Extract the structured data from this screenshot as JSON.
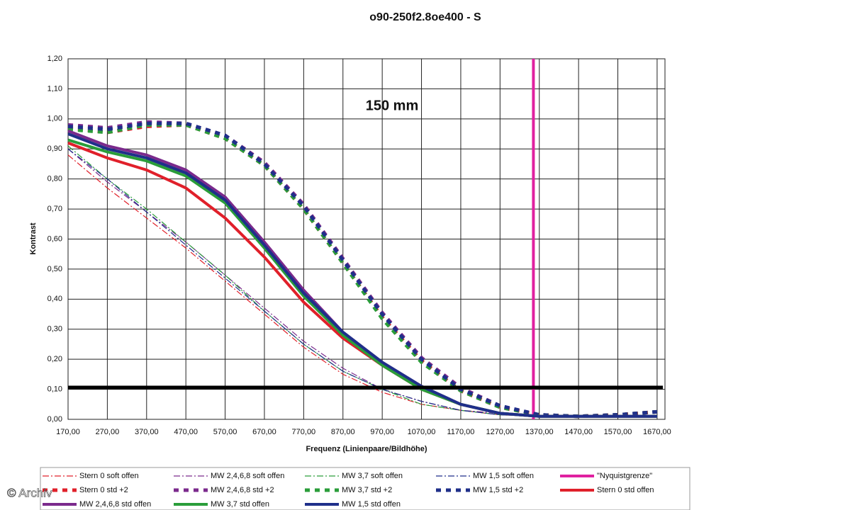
{
  "chart_data": {
    "type": "line",
    "title": "o90-250f2.8oe400 - S",
    "annotation": "150 mm",
    "x_label": "Frequenz (Linienpaare/Bildhöhe)",
    "y_label": "Kontrast",
    "watermark": "© Archiv",
    "x": [
      170,
      270,
      370,
      470,
      570,
      670,
      770,
      870,
      970,
      1070,
      1170,
      1270,
      1370,
      1470,
      1570,
      1670
    ],
    "xlim": [
      170,
      1690
    ],
    "ylim": [
      0,
      1.2
    ],
    "xticks": [
      {
        "value": 170,
        "label": "170,00"
      },
      {
        "value": 270,
        "label": "270,00"
      },
      {
        "value": 370,
        "label": "370,00"
      },
      {
        "value": 470,
        "label": "470,00"
      },
      {
        "value": 570,
        "label": "570,00"
      },
      {
        "value": 670,
        "label": "670,00"
      },
      {
        "value": 770,
        "label": "770,00"
      },
      {
        "value": 870,
        "label": "870,00"
      },
      {
        "value": 970,
        "label": "970,00"
      },
      {
        "value": 1070,
        "label": "1070,00"
      },
      {
        "value": 1170,
        "label": "1170,00"
      },
      {
        "value": 1270,
        "label": "1270,00"
      },
      {
        "value": 1370,
        "label": "1370,00"
      },
      {
        "value": 1470,
        "label": "1470,00"
      },
      {
        "value": 1570,
        "label": "1570,00"
      },
      {
        "value": 1670,
        "label": "1670,00"
      }
    ],
    "yticks": [
      {
        "value": 0,
        "label": "0,00"
      },
      {
        "value": 0.1,
        "label": "0,10"
      },
      {
        "value": 0.2,
        "label": "0,20"
      },
      {
        "value": 0.3,
        "label": "0,30"
      },
      {
        "value": 0.4,
        "label": "0,40"
      },
      {
        "value": 0.5,
        "label": "0,50"
      },
      {
        "value": 0.6,
        "label": "0,60"
      },
      {
        "value": 0.7,
        "label": "0,70"
      },
      {
        "value": 0.8,
        "label": "0,80"
      },
      {
        "value": 0.9,
        "label": "0,90"
      },
      {
        "value": 1.0,
        "label": "1,00"
      },
      {
        "value": 1.1,
        "label": "1,10"
      },
      {
        "value": 1.2,
        "label": "1,20"
      }
    ],
    "grid": true,
    "reference_line": {
      "y": 0.106,
      "color": "#000000"
    },
    "series": [
      {
        "name": "Stern 0 soft offen",
        "color": "#e0202a",
        "style": "dashdot",
        "values": [
          0.88,
          0.77,
          0.67,
          0.57,
          0.46,
          0.35,
          0.24,
          0.15,
          0.09,
          0.05,
          0.03,
          0.015,
          0.01,
          0.01,
          0.01,
          0.01
        ]
      },
      {
        "name": "MW 2,4,6,8 soft offen",
        "color": "#7b2a8c",
        "style": "dashdot",
        "values": [
          0.9,
          0.79,
          0.69,
          0.59,
          0.48,
          0.37,
          0.26,
          0.17,
          0.1,
          0.06,
          0.03,
          0.02,
          0.01,
          0.01,
          0.01,
          0.01
        ]
      },
      {
        "name": "MW 3,7 soft offen",
        "color": "#2a9d3a",
        "style": "dashdot",
        "values": [
          0.91,
          0.8,
          0.7,
          0.59,
          0.48,
          0.36,
          0.25,
          0.16,
          0.1,
          0.05,
          0.03,
          0.015,
          0.01,
          0.01,
          0.01,
          0.01
        ]
      },
      {
        "name": "MW 1,5 soft offen",
        "color": "#1f2f8a",
        "style": "dashdot",
        "values": [
          0.9,
          0.8,
          0.69,
          0.58,
          0.47,
          0.36,
          0.25,
          0.16,
          0.1,
          0.06,
          0.03,
          0.015,
          0.01,
          0.01,
          0.01,
          0.01
        ]
      },
      {
        "name": "\"Nyquistgrenze\"",
        "color": "#e020a0",
        "style": "solid",
        "x": [
          1355,
          1355
        ],
        "values": [
          0,
          1.2
        ]
      },
      {
        "name": "Stern 0 std +2",
        "color": "#e0202a",
        "style": "dash",
        "values": [
          0.97,
          0.955,
          0.975,
          0.98,
          0.935,
          0.845,
          0.7,
          0.52,
          0.34,
          0.195,
          0.095,
          0.04,
          0.015,
          0.01,
          0.015,
          0.025
        ]
      },
      {
        "name": "MW 2,4,6,8 std +2",
        "color": "#7b2a8c",
        "style": "dash",
        "values": [
          0.98,
          0.97,
          0.99,
          0.985,
          0.945,
          0.855,
          0.715,
          0.535,
          0.355,
          0.205,
          0.105,
          0.045,
          0.015,
          0.01,
          0.015,
          0.025
        ]
      },
      {
        "name": "MW 3,7 std +2",
        "color": "#2a9d3a",
        "style": "dash",
        "values": [
          0.965,
          0.955,
          0.98,
          0.98,
          0.935,
          0.845,
          0.7,
          0.52,
          0.335,
          0.19,
          0.095,
          0.04,
          0.015,
          0.01,
          0.015,
          0.025
        ]
      },
      {
        "name": "MW 1,5 std +2",
        "color": "#1f2f8a",
        "style": "dash",
        "values": [
          0.975,
          0.965,
          0.985,
          0.985,
          0.945,
          0.85,
          0.71,
          0.53,
          0.35,
          0.2,
          0.1,
          0.045,
          0.015,
          0.01,
          0.015,
          0.025
        ]
      },
      {
        "name": "Stern 0 std offen",
        "color": "#e0202a",
        "style": "solid",
        "values": [
          0.92,
          0.87,
          0.83,
          0.77,
          0.67,
          0.54,
          0.39,
          0.27,
          0.18,
          0.1,
          0.05,
          0.02,
          0.01,
          0.01,
          0.01,
          0.01
        ]
      },
      {
        "name": "MW 2,4,6,8 std offen",
        "color": "#7b2a8c",
        "style": "solid",
        "values": [
          0.96,
          0.91,
          0.88,
          0.83,
          0.74,
          0.59,
          0.43,
          0.29,
          0.19,
          0.11,
          0.05,
          0.02,
          0.01,
          0.01,
          0.01,
          0.01
        ]
      },
      {
        "name": "MW 3,7 std offen",
        "color": "#2a9d3a",
        "style": "solid",
        "values": [
          0.93,
          0.89,
          0.86,
          0.81,
          0.72,
          0.57,
          0.41,
          0.28,
          0.18,
          0.1,
          0.05,
          0.02,
          0.01,
          0.01,
          0.01,
          0.01
        ]
      },
      {
        "name": "MW 1,5 std offen",
        "color": "#1f2f8a",
        "style": "solid",
        "values": [
          0.95,
          0.9,
          0.87,
          0.82,
          0.73,
          0.58,
          0.42,
          0.29,
          0.19,
          0.11,
          0.05,
          0.02,
          0.01,
          0.01,
          0.01,
          0.01
        ]
      }
    ]
  }
}
